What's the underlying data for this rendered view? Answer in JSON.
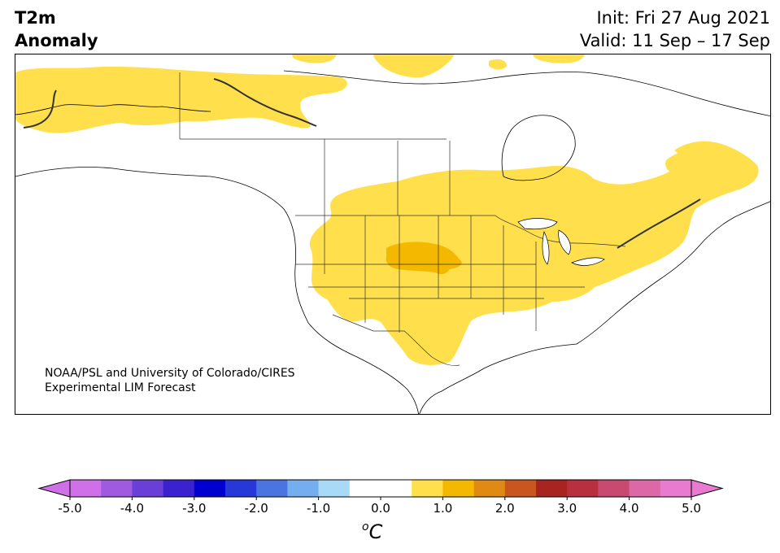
{
  "header": {
    "title_line1": "T2m",
    "title_line2": "Anomaly",
    "init": "Init: Fri 27 Aug 2021",
    "valid": "Valid: 11 Sep – 17 Sep"
  },
  "credit": {
    "line1": "NOAA/PSL and University of Colorado/CIRES",
    "line2": "Experimental LIM Forecast"
  },
  "colorbar": {
    "unit_super": "o",
    "unit_main": "C",
    "ticks": [
      "-5.0",
      "-4.0",
      "-3.0",
      "-2.0",
      "-1.0",
      "0.0",
      "1.0",
      "2.0",
      "3.0",
      "4.0",
      "5.0"
    ],
    "colors": [
      "#d070e8",
      "#a05ae0",
      "#6a3fd8",
      "#3a22d0",
      "#0000d0",
      "#2638d8",
      "#4a74e0",
      "#74aeee",
      "#a8daf8",
      "#ffffff",
      "#ffffff",
      "#ffe04c",
      "#f4b800",
      "#e08a14",
      "#c8561e",
      "#a82420",
      "#b83040",
      "#c84a70",
      "#dc68a8",
      "#e87ad0"
    ],
    "extend_low_color": "#d070e8",
    "extend_high_color": "#e87ad0"
  },
  "map": {
    "region": "North America",
    "anomaly_colors": {
      "weak_warm": "#ffe04c",
      "moderate_warm": "#f4b800"
    }
  }
}
